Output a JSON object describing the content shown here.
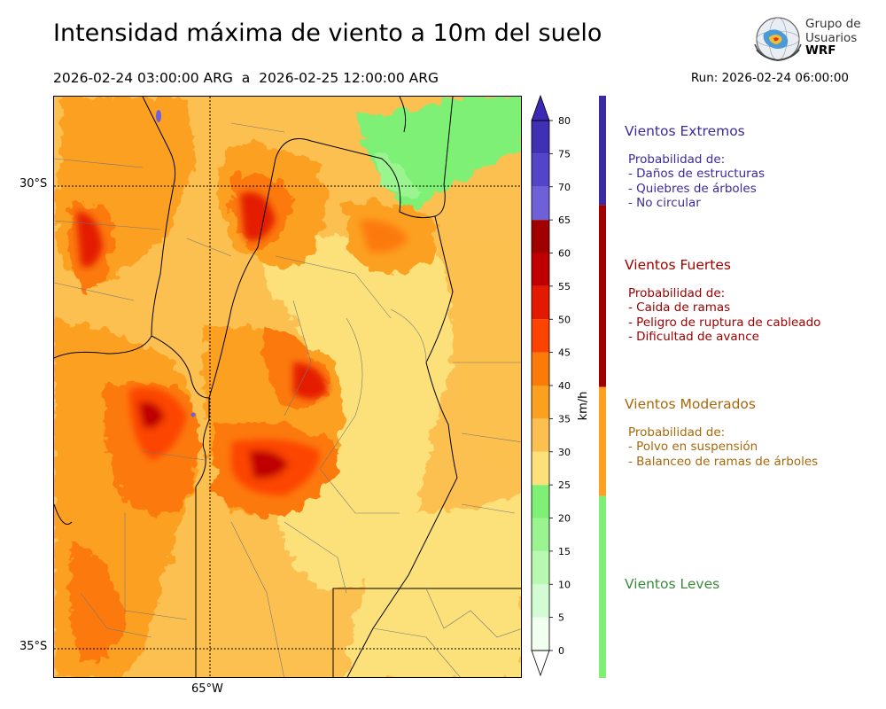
{
  "title": "Intensidad máxima de viento a 10m del suelo",
  "period": "2026-02-24 03:00:00 ARG  a  2026-02-25 12:00:00 ARG",
  "run": "Run: 2026-02-24 06:00:00",
  "logo": {
    "line1": "Grupo de",
    "line2": "Usuarios",
    "line3": "WRF"
  },
  "map": {
    "lat_labels": [
      "30°S",
      "35°S"
    ],
    "lon_labels": [
      "65°W"
    ]
  },
  "colorbar": {
    "unit": "km/h",
    "ticks": [
      0,
      5,
      10,
      15,
      20,
      25,
      30,
      35,
      40,
      45,
      50,
      55,
      60,
      65,
      70,
      75,
      80
    ],
    "colors": [
      "#f0fff0",
      "#d4fcd4",
      "#b8f8b0",
      "#9af490",
      "#7ef076",
      "#fce07a",
      "#fcc050",
      "#fca020",
      "#fc7a08",
      "#fc4400",
      "#e41a00",
      "#c00000",
      "#a00000",
      "#7060d8",
      "#5444c8",
      "#4030b4"
    ],
    "under_color": "#ffffff",
    "over_color": "#3c28b4"
  },
  "legend": [
    {
      "title": "Vientos Extremos",
      "color": "#3a2ba0",
      "bar": "#3a2ba0",
      "from": 65,
      "to": 80,
      "lines": [
        "Probabilidad de:",
        "- Daños de estructuras",
        "- Quiebres de árboles",
        "- No circular"
      ]
    },
    {
      "title": "Vientos Fuertes",
      "color": "#a00000",
      "bar": "#a00000",
      "from": 40,
      "to": 65,
      "lines": [
        "Probabilidad de:",
        "- Caida de ramas",
        "- Peligro de ruptura de cableado",
        "- Dificultad de avance"
      ]
    },
    {
      "title": "Vientos Moderados",
      "color": "#a8680a",
      "bar": "#fca020",
      "from": 25,
      "to": 40,
      "lines": [
        "Probabilidad de:",
        "- Polvo en suspensión",
        "- Balanceo de ramas de árboles"
      ]
    },
    {
      "title": "Vientos Leves",
      "color": "#3a8a3a",
      "bar": "#7ef076",
      "from": 0,
      "to": 25,
      "lines": []
    }
  ]
}
